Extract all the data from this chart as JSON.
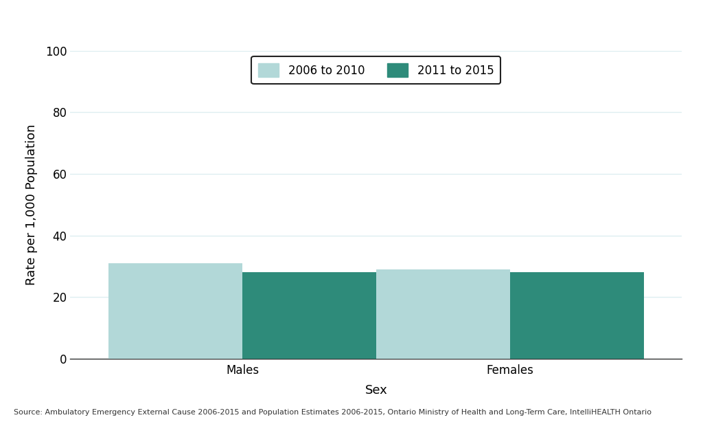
{
  "categories": [
    "Males",
    "Females"
  ],
  "series": {
    "2006 to 2010": [
      31,
      29
    ],
    "2011 to 2015": [
      28,
      28
    ]
  },
  "colors": {
    "2006 to 2010": "#b2d8d8",
    "2011 to 2015": "#2e8b7a"
  },
  "ylabel": "Rate per 1,000 Population",
  "xlabel": "Sex",
  "ylim": [
    0,
    100
  ],
  "yticks": [
    0,
    20,
    40,
    60,
    80,
    100
  ],
  "legend_labels": [
    "2006 to 2010",
    "2011 to 2015"
  ],
  "source_text": "Source: Ambulatory Emergency External Cause 2006-2015 and Population Estimates 2006-2015, Ontario Ministry of Health and Long-Term Care, IntelliHEALTH Ontario",
  "bar_width": 0.35,
  "plot_bg_color": "#ffffff",
  "grid_color": "#ddeef0",
  "fig_bg_color": "#ffffff",
  "spine_color": "#333333",
  "tick_label_fontsize": 12,
  "axis_label_fontsize": 13,
  "legend_fontsize": 12,
  "source_fontsize": 8
}
